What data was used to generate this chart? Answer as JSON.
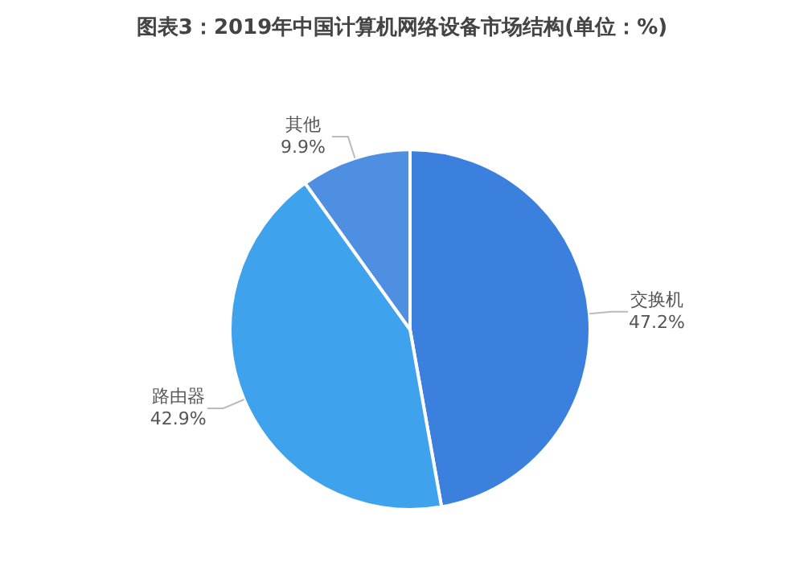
{
  "chart_data": {
    "type": "pie",
    "title": "图表3：2019年中国计算机网络设备市场结构(单位：%)",
    "categories": [
      "交换机",
      "路由器",
      "其他"
    ],
    "values": [
      47.2,
      42.9,
      9.9
    ],
    "value_labels": [
      "47.2%",
      "42.9%",
      "9.9%"
    ],
    "colors": [
      "#3b80dd",
      "#3fa2ec",
      "#4f8fe2"
    ],
    "legend": false
  }
}
